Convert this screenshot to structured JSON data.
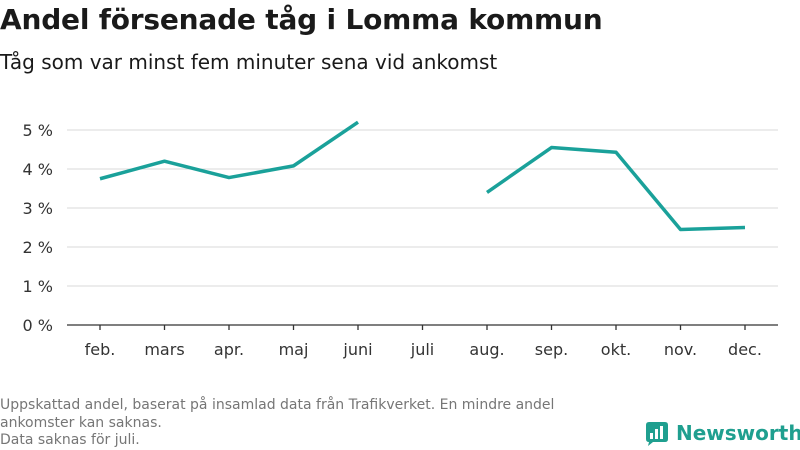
{
  "title": "Andel försenade tåg i Lomma kommun",
  "subtitle": "Tåg som var minst fem minuter sena vid ankomst",
  "chart_data": {
    "type": "line",
    "title": "Andel försenade tåg i Lomma kommun",
    "subtitle": "Tåg som var minst fem minuter sena vid ankomst",
    "categories": [
      "feb.",
      "mars",
      "apr.",
      "maj",
      "juni",
      "juli",
      "aug.",
      "sep.",
      "okt.",
      "nov.",
      "dec."
    ],
    "series": [
      {
        "values": [
          3.75,
          4.2,
          3.78,
          4.08,
          5.2,
          null,
          3.4,
          4.55,
          4.43,
          2.45,
          2.5
        ],
        "color": "#1aa19a"
      }
    ],
    "yticks": [
      0,
      1,
      2,
      3,
      4,
      5
    ],
    "ytick_labels": [
      "0 %",
      "1 %",
      "2 %",
      "3 %",
      "4 %",
      "5 %"
    ],
    "ylim": [
      0,
      5.5
    ],
    "grid": true,
    "legend": "none"
  },
  "footer": {
    "line1": "Uppskattad andel, baserat på insamlad data från Trafikverket. En mindre andel ankomster kan saknas.",
    "line2": "Data saknas för juli."
  },
  "logo": {
    "text": "Newsworthy",
    "icon": "newsworthy-logo-icon",
    "color": "#1f9f8f"
  }
}
